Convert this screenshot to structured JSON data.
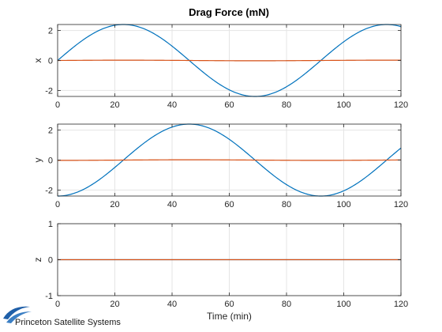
{
  "figure": {
    "title": "Drag Force (mN)"
  },
  "logo": {
    "text": "Princeton Satellite Systems"
  },
  "colors": {
    "series_1": "#0072BD",
    "series_2": "#D95319",
    "axis": "#262626",
    "grid": "#e5e5e5"
  },
  "chart_data": [
    {
      "type": "line",
      "title": "Drag Force (mN)",
      "xlabel": "",
      "ylabel": "x",
      "xlim": [
        0,
        120
      ],
      "ylim": [
        -2.4,
        2.4
      ],
      "xticks": [
        0,
        20,
        40,
        60,
        80,
        100,
        120
      ],
      "yticks": [
        -2,
        0,
        2
      ],
      "grid": true,
      "series": [
        {
          "color": "#0072BD",
          "function": "sine",
          "amplitude": 2.4,
          "period": 92,
          "phase_deg": 0,
          "offset": 0
        },
        {
          "color": "#D95319",
          "function": "sine",
          "amplitude": 0.02,
          "period": 92,
          "phase_deg": 0,
          "offset": 0
        }
      ]
    },
    {
      "type": "line",
      "title": "",
      "xlabel": "",
      "ylabel": "y",
      "xlim": [
        0,
        120
      ],
      "ylim": [
        -2.4,
        2.4
      ],
      "xticks": [
        0,
        20,
        40,
        60,
        80,
        100,
        120
      ],
      "yticks": [
        -2,
        0,
        2
      ],
      "grid": true,
      "series": [
        {
          "color": "#0072BD",
          "function": "sine",
          "amplitude": 2.4,
          "period": 92,
          "phase_deg": -90,
          "offset": 0
        },
        {
          "color": "#D95319",
          "function": "sine",
          "amplitude": 0.02,
          "period": 92,
          "phase_deg": -90,
          "offset": 0
        }
      ]
    },
    {
      "type": "line",
      "title": "",
      "xlabel": "Time (min)",
      "ylabel": "z",
      "xlim": [
        0,
        120
      ],
      "ylim": [
        -1,
        1
      ],
      "xticks": [
        0,
        20,
        40,
        60,
        80,
        100,
        120
      ],
      "yticks": [
        -1,
        0,
        1
      ],
      "grid": true,
      "series": [
        {
          "color": "#0072BD",
          "function": "constant",
          "value": 0
        },
        {
          "color": "#D95319",
          "function": "constant",
          "value": 0
        }
      ]
    }
  ]
}
